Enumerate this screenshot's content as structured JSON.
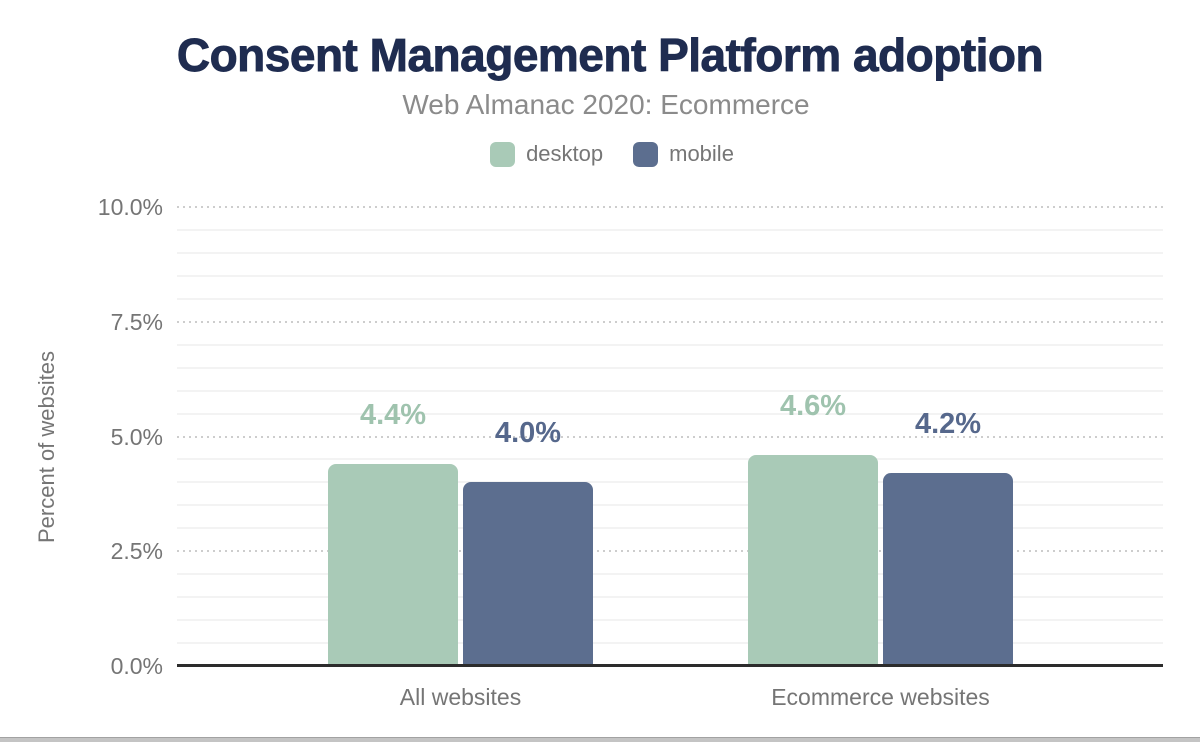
{
  "header": {
    "title": "Consent Management Platform adoption",
    "subtitle": "Web Almanac 2020: Ecommerce"
  },
  "legend": {
    "items": [
      {
        "label": "desktop",
        "color": "#a9cab7"
      },
      {
        "label": "mobile",
        "color": "#5c6e8f"
      }
    ]
  },
  "y_axis": {
    "title": "Percent of websites"
  },
  "chart_data": {
    "type": "bar",
    "title": "Consent Management Platform adoption",
    "subtitle": "Web Almanac 2020: Ecommerce",
    "categories": [
      "All websites",
      "Ecommerce websites"
    ],
    "series": [
      {
        "name": "desktop",
        "color": "#a9cab7",
        "label_color": "#9fc3ae",
        "values": [
          4.4,
          4.6
        ],
        "value_labels": [
          "4.4%",
          "4.6%"
        ]
      },
      {
        "name": "mobile",
        "color": "#5c6e8f",
        "label_color": "#56688c",
        "values": [
          4.0,
          4.2
        ],
        "value_labels": [
          "4.0%",
          "4.2%"
        ]
      }
    ],
    "xlabel": "",
    "ylabel": "Percent of websites",
    "ylim": [
      0,
      10
    ],
    "yticks": [
      "0.0%",
      "2.5%",
      "5.0%",
      "7.5%",
      "10.0%"
    ],
    "ytick_major_step": 2.5,
    "ytick_minor_step": 0.5,
    "grid": {
      "major": "dotted",
      "minor": "solid",
      "vertical": "off"
    },
    "legend_position": "top"
  }
}
